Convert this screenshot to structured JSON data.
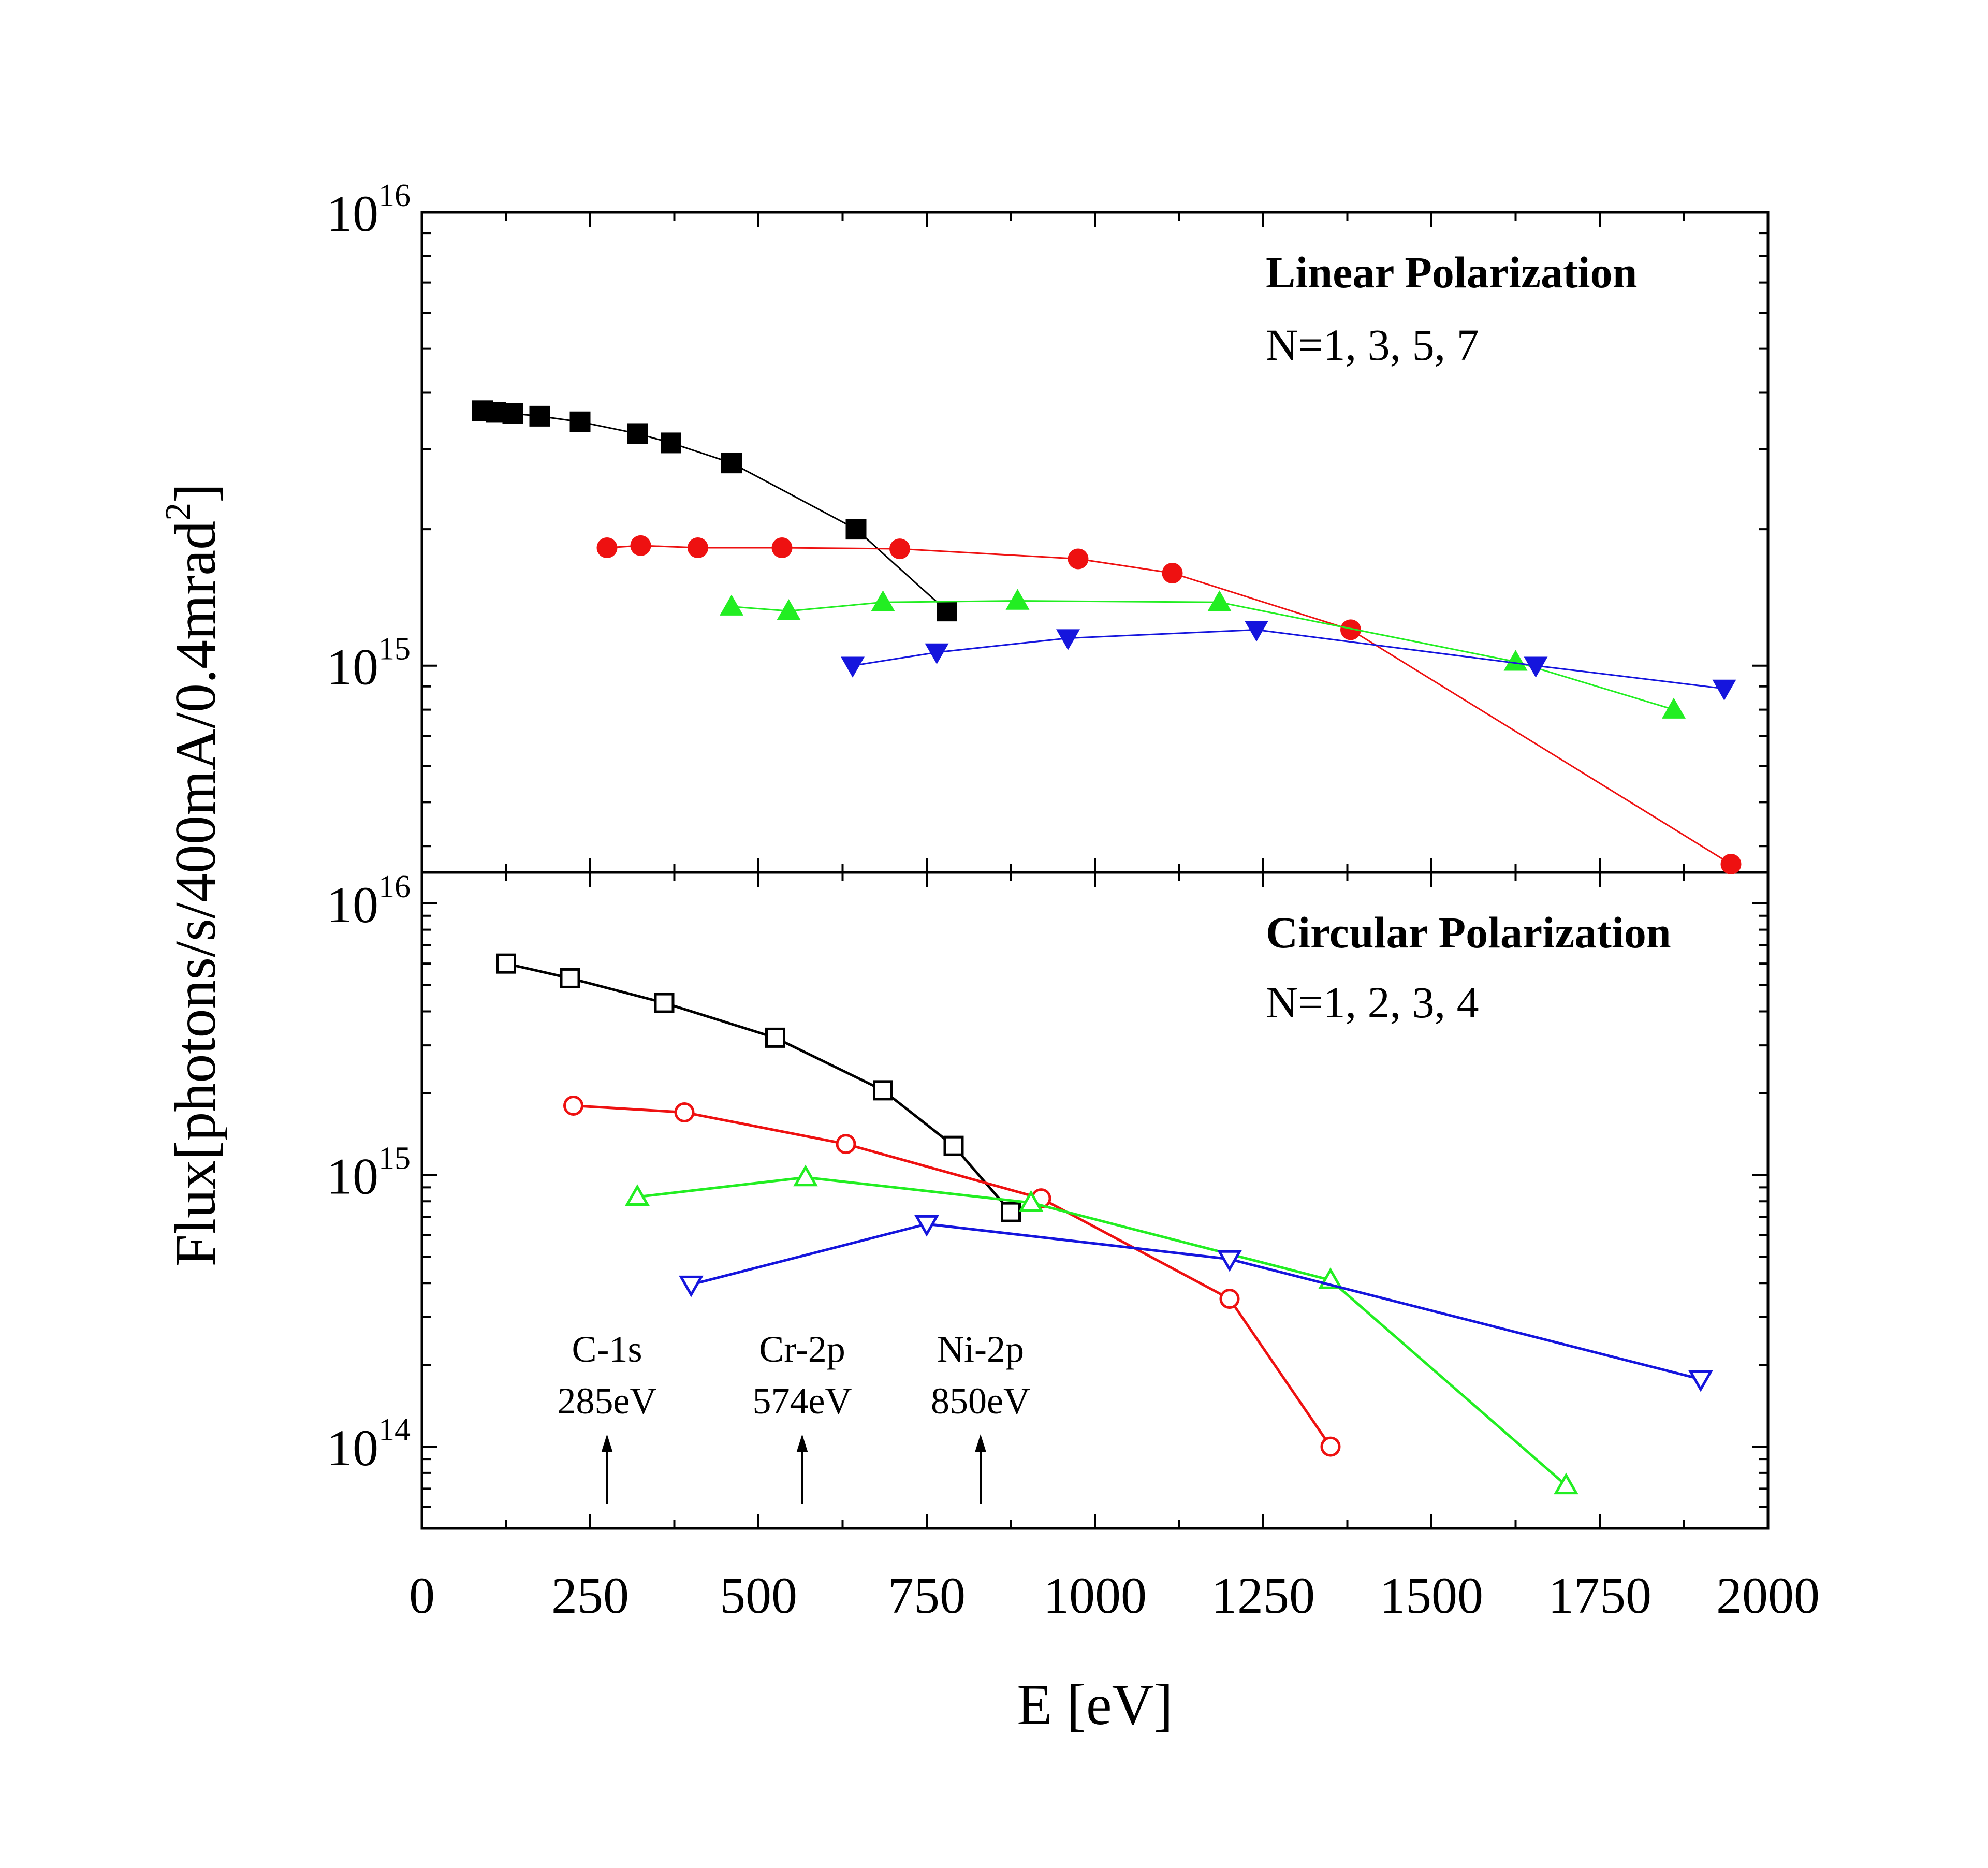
{
  "chart_data": {
    "type": "line",
    "xlabel": "E [eV]",
    "ylabel": "Flux[photons/s/400mA/0.4mrad²]",
    "x_ticks": [
      0,
      250,
      500,
      750,
      1000,
      1250,
      1500,
      1750,
      2000
    ],
    "xlim": [
      0,
      2000
    ],
    "panels": [
      {
        "name": "linear",
        "title": "Linear Polarization",
        "subtitle": "N=1, 3, 5, 7",
        "ylim": [
          350000000000000.0,
          1e+16
        ],
        "y_tick_labels": [
          {
            "value": 1000000000000000.0,
            "label": "10^15"
          },
          {
            "value": 1e+16,
            "label": "10^16"
          }
        ],
        "series": [
          {
            "name": "N=1",
            "color": "#000000",
            "marker": "square-filled",
            "x": [
              90,
              110,
              135,
              175,
              235,
              320,
              370,
              460,
              645,
              780
            ],
            "y": [
              3650000000000000.0,
              3620000000000000.0,
              3600000000000000.0,
              3550000000000000.0,
              3450000000000000.0,
              3250000000000000.0,
              3100000000000000.0,
              2800000000000000.0,
              2000000000000000.0,
              1320000000000000.0
            ]
          },
          {
            "name": "N=3",
            "color": "#ee1111",
            "marker": "circle-filled",
            "x": [
              275,
              325,
              410,
              535,
              710,
              975,
              1115,
              1380,
              1945
            ],
            "y": [
              1820000000000000.0,
              1840000000000000.0,
              1820000000000000.0,
              1820000000000000.0,
              1810000000000000.0,
              1720000000000000.0,
              1600000000000000.0,
              1200000000000000.0,
              365000000000000.0
            ]
          },
          {
            "name": "N=5",
            "color": "#22ee22",
            "marker": "triangle-up-filled",
            "x": [
              460,
              545,
              685,
              885,
              1185,
              1625,
              1860
            ],
            "y": [
              1350000000000000.0,
              1320000000000000.0,
              1380000000000000.0,
              1390000000000000.0,
              1380000000000000.0,
              1020000000000000.0,
              800000000000000.0
            ]
          },
          {
            "name": "N=7",
            "color": "#1515dd",
            "marker": "triangle-down-filled",
            "x": [
              640,
              765,
              960,
              1240,
              1655,
              1935
            ],
            "y": [
              1000000000000000.0,
              1070000000000000.0,
              1150000000000000.0,
              1200000000000000.0,
              1000000000000000.0,
              890000000000000.0
            ]
          }
        ]
      },
      {
        "name": "circular",
        "title": "Circular Polarization",
        "subtitle": "N=1, 2, 3, 4",
        "ylim": [
          50000000000000.0,
          1.3e+16
        ],
        "y_tick_labels": [
          {
            "value": 100000000000000.0,
            "label": "10^14"
          },
          {
            "value": 1000000000000000.0,
            "label": "10^15"
          },
          {
            "value": 1e+16,
            "label": "10^16"
          }
        ],
        "series": [
          {
            "name": "N=1",
            "color": "#000000",
            "marker": "square-open",
            "x": [
              125,
              220,
              360,
              525,
              685,
              790,
              875
            ],
            "y": [
              6000000000000000.0,
              5300000000000000.0,
              4300000000000000.0,
              3200000000000000.0,
              2050000000000000.0,
              1280000000000000.0,
              730000000000000.0
            ]
          },
          {
            "name": "N=2",
            "color": "#ee1111",
            "marker": "circle-open",
            "x": [
              225,
              390,
              630,
              920,
              1200,
              1350
            ],
            "y": [
              1800000000000000.0,
              1700000000000000.0,
              1300000000000000.0,
              820000000000000.0,
              350000000000000.0,
              100000000000000.0
            ]
          },
          {
            "name": "N=3",
            "color": "#22ee22",
            "marker": "triangle-up-open",
            "x": [
              320,
              570,
              905,
              1350,
              1700
            ],
            "y": [
              830000000000000.0,
              980000000000000.0,
              790000000000000.0,
              410000000000000.0,
              72000000000000.0
            ]
          },
          {
            "name": "N=4",
            "color": "#1515dd",
            "marker": "triangle-down-open",
            "x": [
              400,
              750,
              1200,
              1900
            ],
            "y": [
              395000000000000.0,
              660000000000000.0,
              490000000000000.0,
              177000000000000.0
            ]
          }
        ],
        "annotations": [
          {
            "line1": "C-1s",
            "line2": "285eV",
            "x": 275
          },
          {
            "line1": "Cr-2p",
            "line2": "574eV",
            "x": 565
          },
          {
            "line1": "Ni-2p",
            "line2": "850eV",
            "x": 830
          }
        ]
      }
    ]
  }
}
